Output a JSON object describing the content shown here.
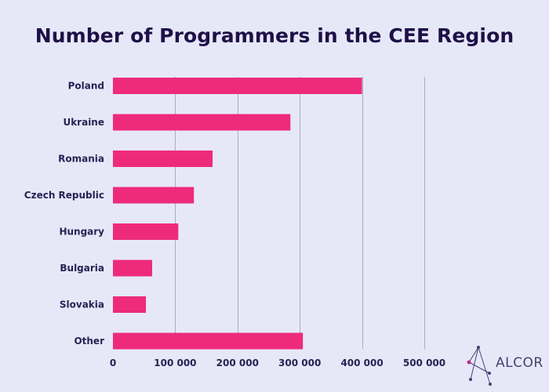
{
  "chart_data": {
    "type": "bar",
    "orientation": "horizontal",
    "title": "Number of Programmers in the CEE Region",
    "categories": [
      "Poland",
      "Ukraine",
      "Romania",
      "Czech Republic",
      "Hungary",
      "Bulgaria",
      "Slovakia",
      "Other"
    ],
    "values": [
      400000,
      285000,
      160000,
      130000,
      105000,
      63000,
      53000,
      305000
    ],
    "xlim": [
      0,
      500000
    ],
    "xticks": [
      0,
      100000,
      200000,
      300000,
      400000,
      500000
    ],
    "xtick_labels": [
      "0",
      "100 000",
      "200 000",
      "300 000",
      "400 000",
      "500 000"
    ],
    "grid": "vertical",
    "bar_color": "#ee2b7b"
  },
  "logo": {
    "text": "ALCOR",
    "accent_color": "#c0277a"
  }
}
